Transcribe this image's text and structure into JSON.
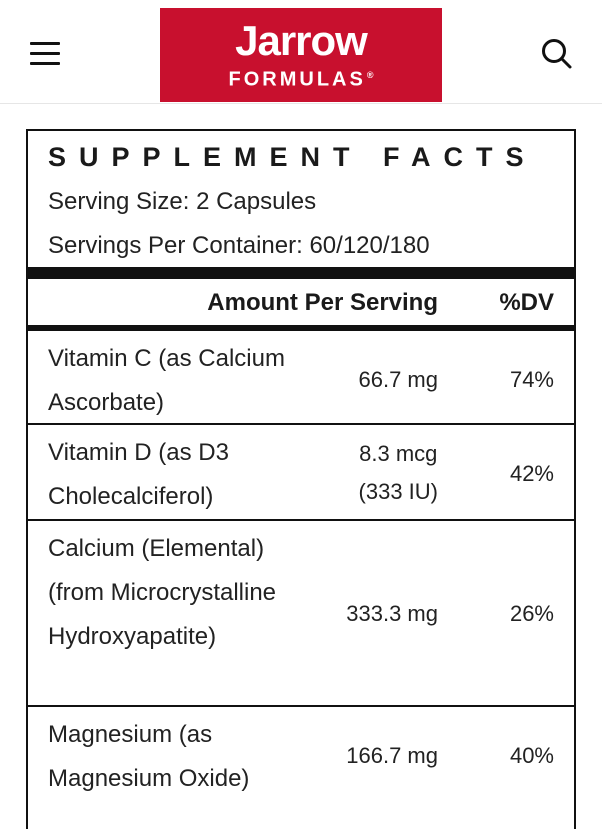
{
  "header": {
    "logo_main": "Jarrow",
    "logo_sub": "FORMULAS",
    "logo_reg": "®",
    "menu_icon": "hamburger-menu-icon",
    "search_icon": "search-icon",
    "brand_color": "#c8102e"
  },
  "facts": {
    "title": "SUPPLEMENT FACTS",
    "serving_size": "Serving Size: 2 Capsules",
    "servings_per_container": "Servings Per Container: 60/120/180",
    "col_amount": "Amount Per Serving",
    "col_dv": "%DV",
    "rows": [
      {
        "name": "Vitamin C (as Calcium Ascorbate)",
        "amount": "66.7 mg",
        "dv": "74%"
      },
      {
        "name": "Vitamin D (as D3 Cholecalciferol)",
        "amount": "8.3 mcg\n(333 IU)",
        "dv": "42%"
      },
      {
        "name": "Calcium (Elemental) (from Microcrystalline Hydroxyapatite)",
        "amount": "333.3 mg",
        "dv": "26%"
      },
      {
        "name": "Magnesium (as Magnesium Oxide)",
        "amount": "166.7 mg",
        "dv": "40%"
      }
    ]
  }
}
